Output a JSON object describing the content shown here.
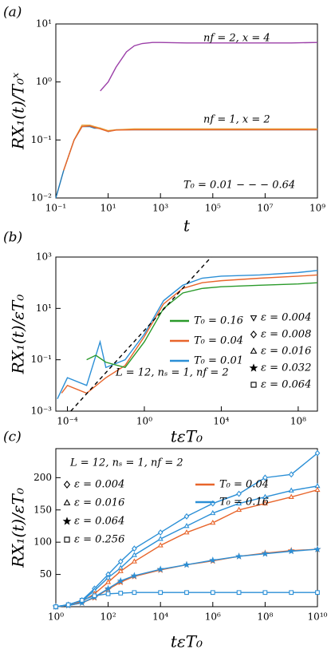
{
  "chart_data": [
    {
      "type": "line",
      "panel_label": "(a)",
      "xlog": true,
      "ylog": true,
      "x_label": "t",
      "y_label": "RX₁(t)/T₀ˣ",
      "xlim": [
        0.1,
        1000000000
      ],
      "ylim": [
        0.01,
        10
      ],
      "xticks": [
        {
          "value": 0.1,
          "label": "10⁻¹"
        },
        {
          "value": 10,
          "label": "10¹"
        },
        {
          "value": 1000,
          "label": "10³"
        },
        {
          "value": 100000,
          "label": "10⁵"
        },
        {
          "value": 10000000,
          "label": "10⁷"
        },
        {
          "value": 1000000000,
          "label": "10⁹"
        }
      ],
      "yticks": [
        {
          "value": 0.01,
          "label": "10⁻²"
        },
        {
          "value": 0.1,
          "label": "10⁻¹"
        },
        {
          "value": 1,
          "label": "10⁰"
        },
        {
          "value": 10,
          "label": "10¹"
        }
      ],
      "annotations": [
        "nf = 2, x = 4",
        "nf = 1, x = 2",
        "T₀ = 0.01 − − − 0.64"
      ],
      "series": [
        {
          "color": "#9b3fa8",
          "x": [
            5,
            10,
            20,
            50,
            100,
            200,
            500,
            1000,
            10000,
            100000,
            1000000,
            10000000,
            100000000,
            1000000000
          ],
          "values": [
            0.7,
            1.0,
            1.8,
            3.3,
            4.2,
            4.6,
            4.8,
            4.8,
            4.7,
            4.7,
            4.7,
            4.7,
            4.7,
            4.8
          ]
        },
        {
          "color": "#1f77b4",
          "x": [
            0.1,
            0.2,
            0.5,
            1,
            2,
            3,
            5,
            10,
            20,
            100,
            1000,
            100000,
            10000000,
            1000000000
          ],
          "values": [
            0.01,
            0.03,
            0.1,
            0.17,
            0.17,
            0.16,
            0.16,
            0.14,
            0.15,
            0.15,
            0.15,
            0.15,
            0.15,
            0.15
          ]
        },
        {
          "color": "#e8a33c",
          "x": [
            0.2,
            0.5,
            1,
            2,
            3,
            5,
            10,
            20,
            100,
            1000,
            100000,
            10000000,
            1000000000
          ],
          "values": [
            0.03,
            0.1,
            0.18,
            0.18,
            0.17,
            0.16,
            0.145,
            0.15,
            0.155,
            0.155,
            0.155,
            0.155,
            0.155
          ]
        },
        {
          "color": "#e8652b",
          "x": [
            0.2,
            0.5,
            1,
            2,
            3,
            5,
            10,
            20,
            100,
            1000,
            100000,
            10000000,
            1000000000
          ],
          "values": [
            0.03,
            0.1,
            0.17,
            0.175,
            0.165,
            0.155,
            0.14,
            0.148,
            0.15,
            0.15,
            0.15,
            0.15,
            0.15
          ]
        }
      ]
    },
    {
      "type": "line",
      "panel_label": "(b)",
      "xlog": true,
      "ylog": true,
      "x_label": "tεT₀",
      "y_label": "RX₁(t)/εT₀",
      "xlim": [
        2.5e-05,
        1000000000
      ],
      "ylim": [
        0.001,
        1000
      ],
      "xticks": [
        {
          "value": 0.0001,
          "label": "10⁻⁴"
        },
        {
          "value": 1,
          "label": "10⁰"
        },
        {
          "value": 10000,
          "label": "10⁴"
        },
        {
          "value": 100000000,
          "label": "10⁸"
        }
      ],
      "yticks": [
        {
          "value": 0.001,
          "label": "10⁻³"
        },
        {
          "value": 0.1,
          "label": "10⁻¹"
        },
        {
          "value": 10,
          "label": "10¹"
        },
        {
          "value": 1000,
          "label": "10³"
        }
      ],
      "annotations": [
        "L = 12, nₛ = 1, nf = 2"
      ],
      "legend": [
        {
          "label": "T₀ = 0.16",
          "color": "#2a9a2a"
        },
        {
          "label": "T₀ = 0.04",
          "color": "#e8652b"
        },
        {
          "label": "T₀ = 0.01",
          "color": "#2b8fd6"
        }
      ],
      "marker_legend": [
        {
          "label": "ε = 0.004",
          "marker": "triangle-down"
        },
        {
          "label": "ε = 0.008",
          "marker": "diamond"
        },
        {
          "label": "ε = 0.016",
          "marker": "triangle-up"
        },
        {
          "label": "ε = 0.032",
          "marker": "star"
        },
        {
          "label": "ε = 0.064",
          "marker": "square"
        }
      ],
      "series": [
        {
          "color": "#2b8fd6",
          "x": [
            3e-05,
            0.0001,
            0.001,
            0.005,
            0.01,
            0.1,
            1,
            10,
            100,
            1000,
            10000,
            1000000,
            100000000,
            1000000000
          ],
          "values": [
            0.003,
            0.02,
            0.01,
            0.5,
            0.05,
            0.1,
            1,
            20,
            80,
            150,
            180,
            200,
            250,
            300
          ]
        },
        {
          "color": "#e8652b",
          "x": [
            5e-05,
            0.0001,
            0.001,
            0.01,
            0.1,
            1,
            10,
            100,
            1000,
            10000,
            1000000,
            100000000,
            1000000000
          ],
          "values": [
            0.005,
            0.01,
            0.005,
            0.02,
            0.06,
            0.8,
            15,
            60,
            100,
            120,
            150,
            180,
            200
          ]
        },
        {
          "color": "#2a9a2a",
          "x": [
            0.001,
            0.003,
            0.01,
            0.1,
            1,
            10,
            100,
            1000,
            10000,
            1000000,
            100000000,
            1000000000
          ],
          "values": [
            0.1,
            0.15,
            0.08,
            0.05,
            0.5,
            10,
            40,
            60,
            70,
            80,
            90,
            100
          ]
        },
        {
          "color": "#000000",
          "linestyle": "dashed",
          "x": [
            0.00015,
            3000
          ],
          "values": [
            0.001,
            1000
          ]
        }
      ]
    },
    {
      "type": "line",
      "panel_label": "(c)",
      "xlog": true,
      "ylog": false,
      "x_label": "tεT₀",
      "y_label": "RX₁(t)/εT₀",
      "xlim": [
        1,
        10000000000
      ],
      "ylim": [
        0,
        245
      ],
      "xticks": [
        {
          "value": 1,
          "label": "10⁰"
        },
        {
          "value": 100,
          "label": "10²"
        },
        {
          "value": 10000,
          "label": "10⁴"
        },
        {
          "value": 1000000,
          "label": "10⁶"
        },
        {
          "value": 100000000,
          "label": "10⁸"
        },
        {
          "value": 10000000000,
          "label": "10¹⁰"
        }
      ],
      "yticks": [
        50,
        100,
        150,
        200
      ],
      "annotations": [
        "L = 12, nₛ = 1, nf = 2"
      ],
      "legend": [
        {
          "label": "T₀ = 0.04",
          "color": "#e8652b"
        },
        {
          "label": "T₀ = 0.16",
          "color": "#2b8fd6"
        }
      ],
      "marker_legend": [
        {
          "label": "ε = 0.004",
          "marker": "diamond"
        },
        {
          "label": "ε = 0.016",
          "marker": "triangle-up"
        },
        {
          "label": "ε = 0.064",
          "marker": "star"
        },
        {
          "label": "ε = 0.256",
          "marker": "square"
        }
      ],
      "series": [
        {
          "color": "#2b8fd6",
          "marker": "diamond",
          "x": [
            1,
            3,
            10,
            30,
            100,
            300,
            1000,
            10000,
            100000,
            1000000,
            10000000,
            100000000,
            1000000000,
            10000000000
          ],
          "values": [
            0,
            3,
            10,
            28,
            50,
            70,
            90,
            115,
            140,
            160,
            175,
            200,
            205,
            238
          ]
        },
        {
          "color": "#2b8fd6",
          "marker": "triangle-up",
          "x": [
            1,
            3,
            10,
            30,
            100,
            300,
            1000,
            10000,
            100000,
            1000000,
            10000000,
            100000000,
            1000000000,
            10000000000
          ],
          "values": [
            0,
            3,
            9,
            25,
            45,
            60,
            80,
            105,
            125,
            145,
            160,
            170,
            180,
            187
          ]
        },
        {
          "color": "#e8652b",
          "marker": "triangle-up",
          "x": [
            1,
            3,
            10,
            30,
            100,
            300,
            1000,
            10000,
            100000,
            1000000,
            10000000,
            100000000,
            1000000000,
            10000000000
          ],
          "values": [
            0,
            2,
            8,
            20,
            38,
            55,
            70,
            95,
            115,
            130,
            150,
            160,
            170,
            181
          ]
        },
        {
          "color": "#e8652b",
          "marker": "star",
          "x": [
            1,
            3,
            10,
            30,
            100,
            300,
            1000,
            10000,
            100000,
            1000000,
            10000000,
            100000000,
            1000000000,
            10000000000
          ],
          "values": [
            0,
            2,
            6,
            14,
            27,
            38,
            47,
            57,
            65,
            71,
            78,
            83,
            87,
            89
          ]
        },
        {
          "color": "#2b8fd6",
          "marker": "star",
          "x": [
            1,
            3,
            10,
            30,
            100,
            300,
            1000,
            10000,
            100000,
            1000000,
            10000000,
            100000000,
            1000000000,
            10000000000
          ],
          "values": [
            0,
            2,
            6,
            15,
            28,
            40,
            48,
            58,
            65,
            72,
            78,
            82,
            86,
            89
          ]
        },
        {
          "color": "#2b8fd6",
          "marker": "square",
          "x": [
            1,
            3,
            10,
            30,
            100,
            300,
            1000,
            10000,
            100000,
            1000000,
            10000000,
            100000000,
            1000000000,
            10000000000
          ],
          "values": [
            0,
            3,
            10,
            17,
            20,
            21,
            22,
            22,
            22,
            22,
            22,
            22,
            22,
            22
          ]
        }
      ]
    }
  ]
}
